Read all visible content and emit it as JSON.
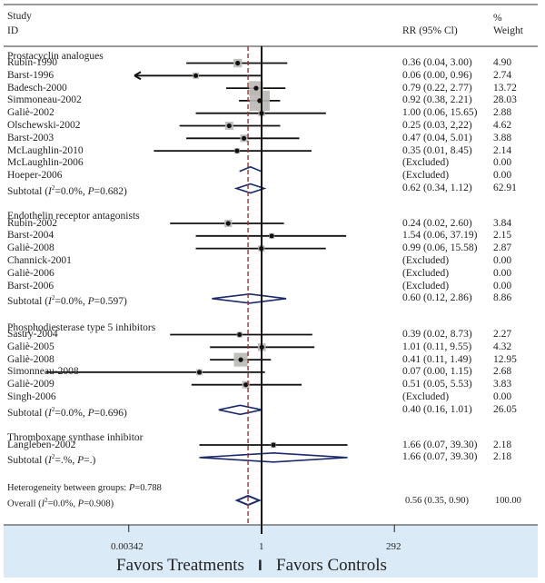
{
  "chart_data": {
    "type": "forest",
    "headers": {
      "study": "Study",
      "id": "ID",
      "effect": "RR (95% Cl)",
      "weight_pct": "%",
      "weight": "Weight"
    },
    "x_scale": "log",
    "x_ticks": [
      {
        "value": 0.00342,
        "label": "0.00342"
      },
      {
        "value": 1,
        "label": "1"
      },
      {
        "value": 292,
        "label": "292"
      }
    ],
    "reference_line": 1,
    "overall_dashed_line": 0.56,
    "favors_left": "Favors Treatments",
    "favors_divider": "I",
    "favors_right": "Favors Controls",
    "groups": [
      {
        "name": "Prostacyclin analogues",
        "studies": [
          {
            "id": "Rubin-1990",
            "rr": 0.36,
            "lo": 0.04,
            "hi": 3.0,
            "text": "0.36 (0.04, 3.00)",
            "weight": "4.90"
          },
          {
            "id": "Barst-1996",
            "rr": 0.06,
            "lo": 0.0,
            "hi": 0.96,
            "text": "0.06 (0.00, 0.96)",
            "weight": "2.74",
            "arrow_left": true
          },
          {
            "id": "Badesch-2000",
            "rr": 0.79,
            "lo": 0.22,
            "hi": 2.77,
            "text": "0.79 (0.22, 2.77)",
            "weight": "13.72"
          },
          {
            "id": "Simmoneau-2002",
            "rr": 0.92,
            "lo": 0.38,
            "hi": 2.21,
            "text": "0.92 (0.38, 2.21)",
            "weight": "28.03"
          },
          {
            "id": "Galiè-2002",
            "rr": 1.0,
            "lo": 0.06,
            "hi": 15.65,
            "text": "1.00 (0.06, 15.65)",
            "weight": "2.88"
          },
          {
            "id": "Olschewski-2002",
            "rr": 0.25,
            "lo": 0.03,
            "hi": 2.22,
            "text": "0.25 (0.03, 2,22)",
            "weight": "4.62"
          },
          {
            "id": "Barst-2003",
            "rr": 0.47,
            "lo": 0.04,
            "hi": 5.01,
            "text": "0.47 (0.04, 5.01)",
            "weight": "3.88"
          },
          {
            "id": "McLaughlin-2010",
            "rr": 0.35,
            "lo": 0.01,
            "hi": 8.45,
            "text": "0.35 (0.01, 8.45)",
            "weight": "2.14"
          },
          {
            "id": "McLaughlin-2006",
            "rr": null,
            "text": "(Excluded)",
            "weight": "0.00"
          },
          {
            "id": "Hoeper-2006",
            "rr": null,
            "text": "(Excluded)",
            "weight": "0.00"
          }
        ],
        "subtotal": {
          "label": "Subtotal (I²=0.0%, P=0.682)",
          "rr": 0.62,
          "lo": 0.34,
          "hi": 1.12,
          "text": "0.62 (0.34, 1.12)",
          "weight": "62.91"
        }
      },
      {
        "name": "Endothelin receptor antagonists",
        "studies": [
          {
            "id": "Rubin-2002",
            "rr": 0.24,
            "lo": 0.02,
            "hi": 2.6,
            "text": "0.24 (0.02, 2.60)",
            "weight": "3.84"
          },
          {
            "id": "Barst-2004",
            "rr": 1.54,
            "lo": 0.06,
            "hi": 37.19,
            "text": "1.54 (0.06, 37.19)",
            "weight": "2.15"
          },
          {
            "id": "Galiè-2008",
            "rr": 0.99,
            "lo": 0.06,
            "hi": 15.58,
            "text": "0.99 (0.06, 15.58)",
            "weight": "2.87"
          },
          {
            "id": "Channick-2001",
            "rr": null,
            "text": "(Excluded)",
            "weight": "0.00"
          },
          {
            "id": "Galiè-2006",
            "rr": null,
            "text": "(Excluded)",
            "weight": "0.00"
          },
          {
            "id": "Barst-2006",
            "rr": null,
            "text": "(Excluded)",
            "weight": "0.00"
          }
        ],
        "subtotal": {
          "label": "Subtotal (I²=0.0%, P=0.597)",
          "rr": 0.6,
          "lo": 0.12,
          "hi": 2.86,
          "text": "0.60 (0.12, 2.86)",
          "weight": "8.86"
        }
      },
      {
        "name": "Phosphodiesterase type 5 inhibitors",
        "studies": [
          {
            "id": "Sastry-2004",
            "rr": 0.39,
            "lo": 0.02,
            "hi": 8.73,
            "text": "0.39 (0.02, 8.73)",
            "weight": "2.27"
          },
          {
            "id": "Galiè-2005",
            "rr": 1.01,
            "lo": 0.11,
            "hi": 9.55,
            "text": "1.01 (0.11, 9.55)",
            "weight": "4.32"
          },
          {
            "id": "Galiè-2008",
            "rr": 0.41,
            "lo": 0.11,
            "hi": 1.49,
            "text": "0.41 (0.11, 1.49)",
            "weight": "12.95"
          },
          {
            "id": "Simonneau-2008",
            "rr": 0.07,
            "lo": 0.0,
            "hi": 1.15,
            "text": "0.07 (0.00, 1.15)",
            "weight": "2.68"
          },
          {
            "id": "Galiè-2009",
            "rr": 0.51,
            "lo": 0.05,
            "hi": 5.53,
            "text": "0.51 (0.05, 5.53)",
            "weight": "3.83"
          },
          {
            "id": "Singh-2006",
            "rr": null,
            "text": "(Excluded)",
            "weight": "0.00"
          }
        ],
        "subtotal": {
          "label": "Subtotal (I²=0.0%, P=0.696)",
          "rr": 0.4,
          "lo": 0.16,
          "hi": 1.01,
          "text": "0.40 (0.16, 1.01)",
          "weight": "26.05"
        }
      },
      {
        "name": "Thromboxane synthase inhibitor",
        "studies": [
          {
            "id": "Langleben-2002",
            "rr": 1.66,
            "lo": 0.07,
            "hi": 39.3,
            "text": "1.66 (0.07, 39.30)",
            "weight": "2.18"
          }
        ],
        "subtotal": {
          "label": "Subtotal (I²=.%, P=.)",
          "rr": 1.66,
          "lo": 0.07,
          "hi": 39.3,
          "text": "1.66 (0.07, 39.30)",
          "weight": "2.18"
        }
      }
    ],
    "heterogeneity": "Heterogeneity between groups: P=0.788",
    "overall": {
      "label": "Overall (I²=0.0%, P=0.908)",
      "rr": 0.56,
      "lo": 0.35,
      "hi": 0.9,
      "text": "0.56 (0.35, 0.90)",
      "weight": "100.00"
    }
  },
  "colors": {
    "diamond": "#1a2a6c",
    "dashed_line": "#a0302a",
    "weight_box": "#b8b8b4",
    "footer_bg": "#dbeaf7"
  }
}
